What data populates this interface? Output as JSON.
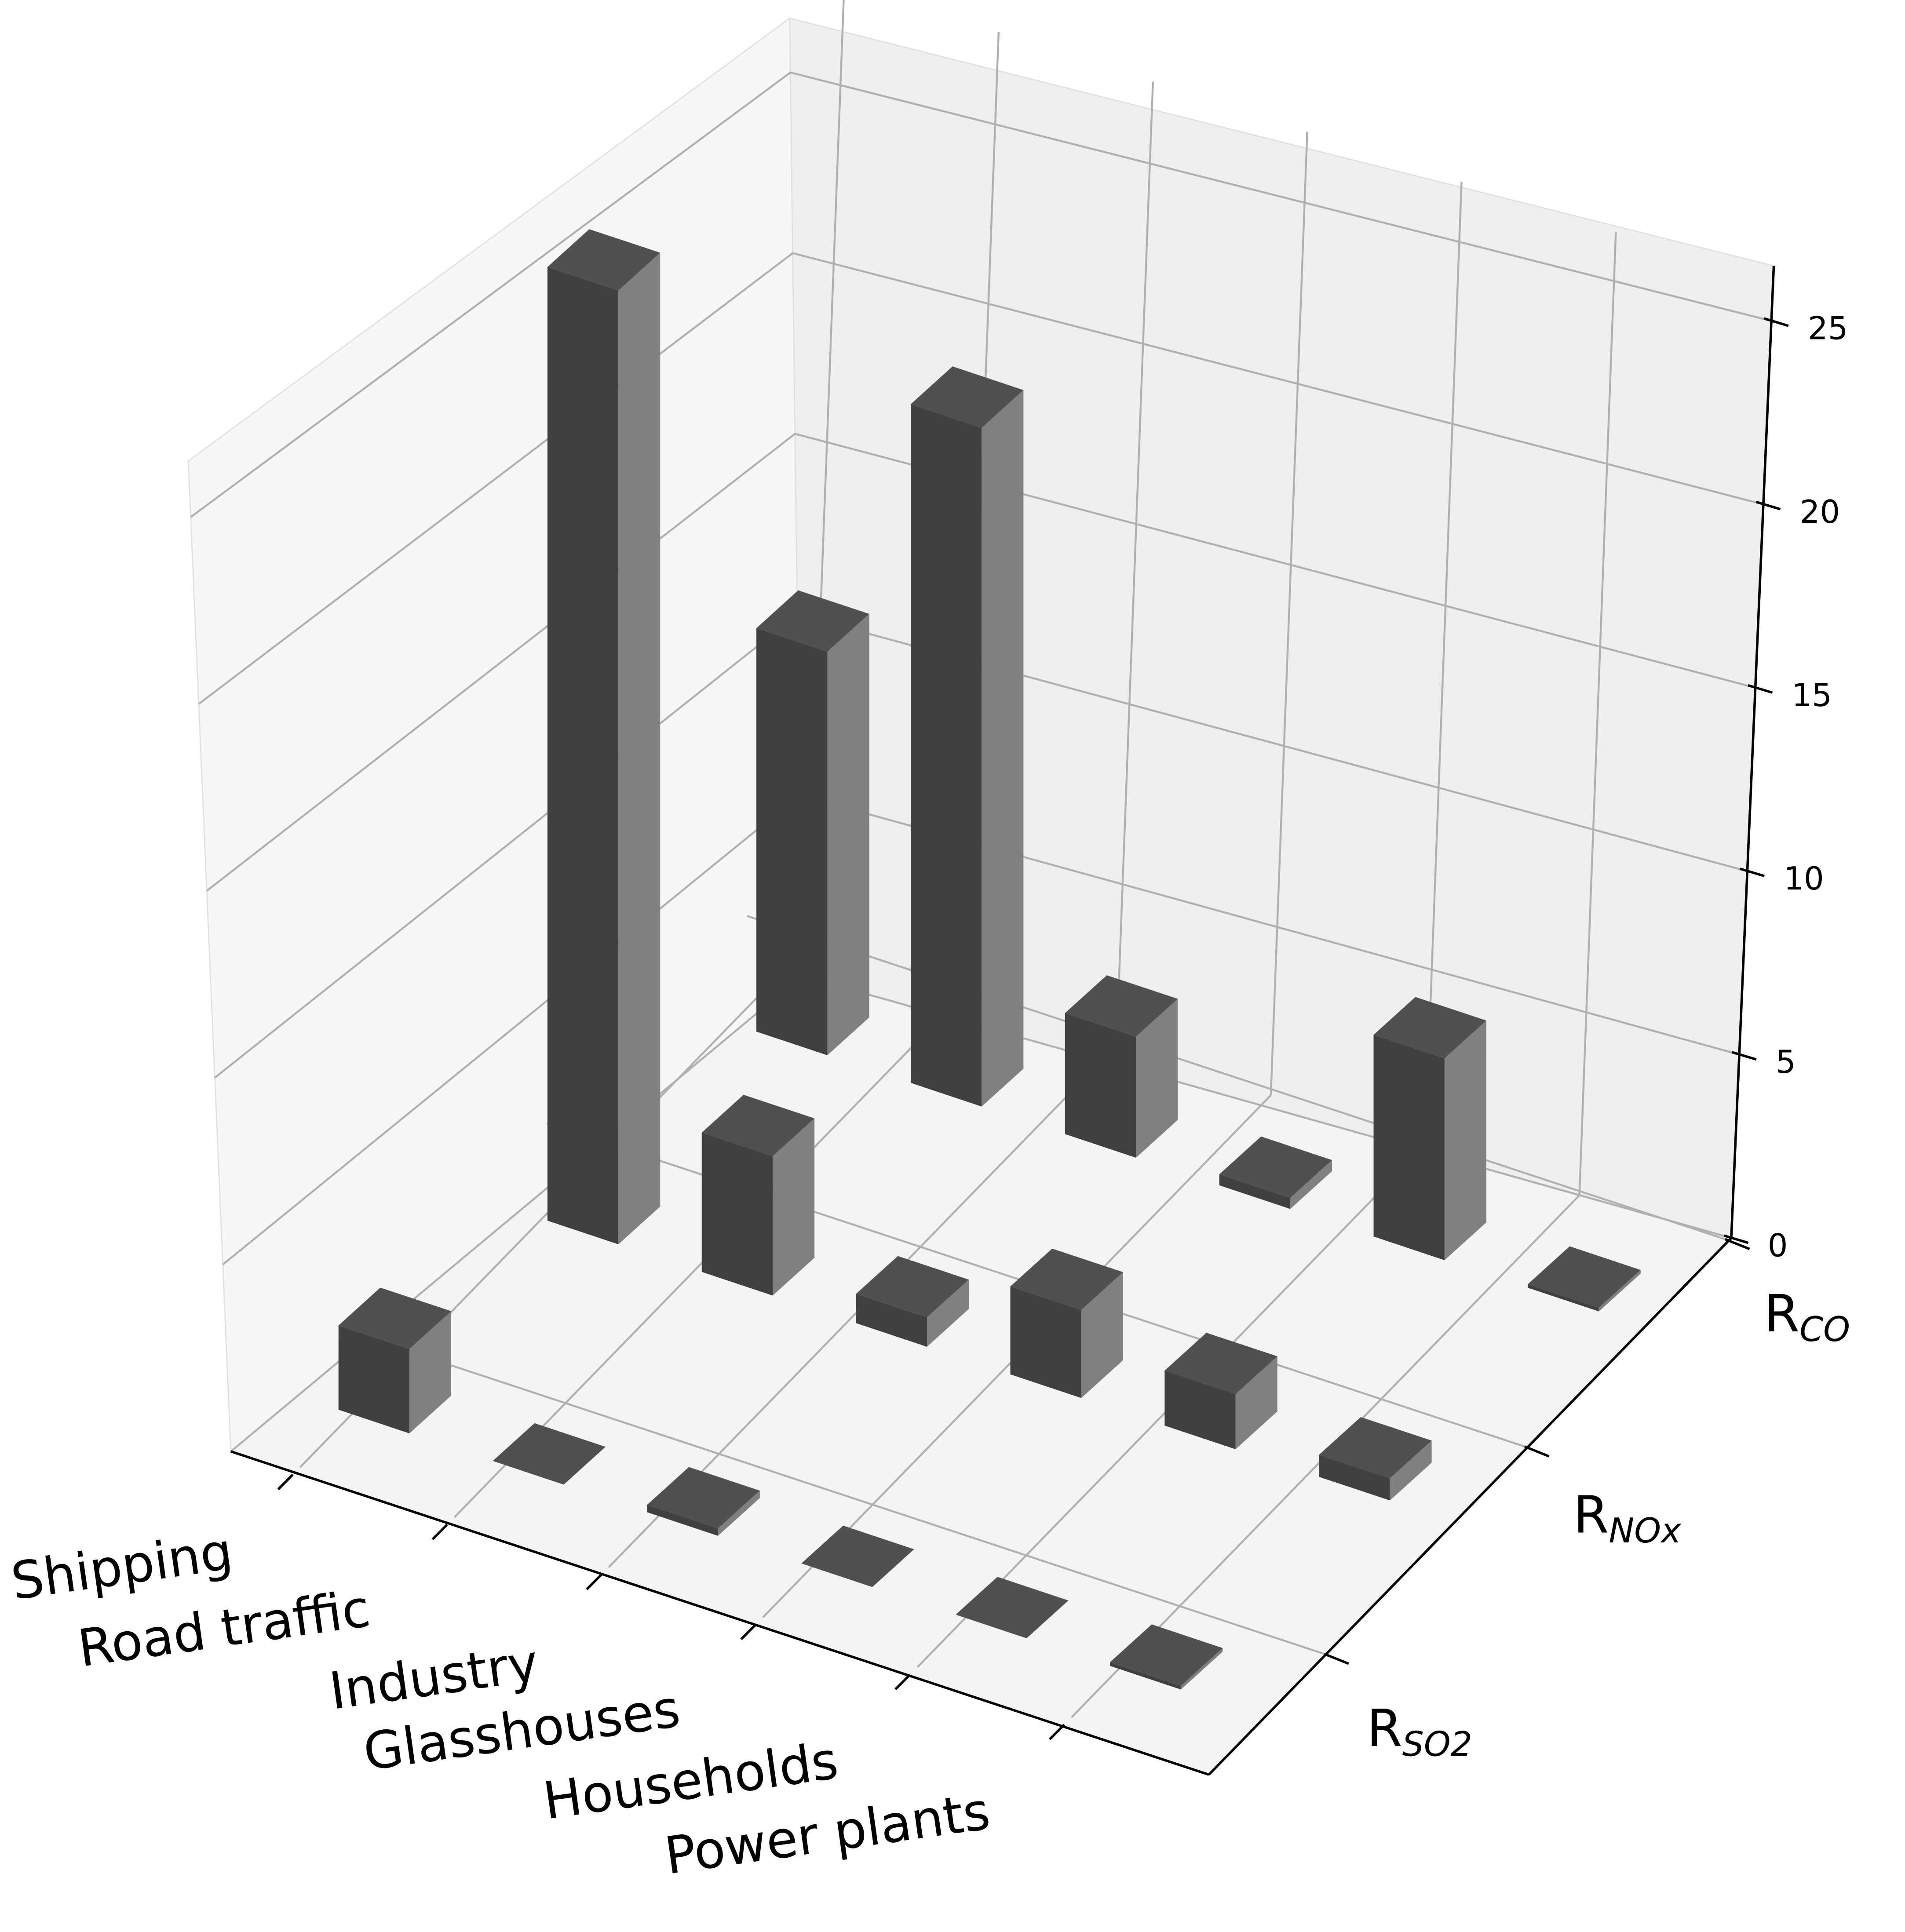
{
  "chart_data": {
    "type": "bar3d",
    "categories": [
      "Shipping",
      "Road traffic",
      "Industry",
      "Glasshouses",
      "Households",
      "Power plants"
    ],
    "series": [
      {
        "name": "R",
        "subscript": "SO2",
        "color": "#404040",
        "values": [
          2.3,
          0,
          0.2,
          0,
          0,
          0.1
        ]
      },
      {
        "name": "R",
        "subscript": "NOx",
        "color": "#404040",
        "values": [
          26,
          3.8,
          0.8,
          2.4,
          1.5,
          0.6
        ]
      },
      {
        "name": "R",
        "subscript": "CO",
        "color": "#404040",
        "values": [
          11,
          18.5,
          3.3,
          0.3,
          5.5,
          0.1
        ]
      }
    ],
    "zlim": [
      0,
      26.5
    ],
    "zticks": [
      0,
      5,
      10,
      15,
      20,
      25
    ],
    "grid": true
  }
}
